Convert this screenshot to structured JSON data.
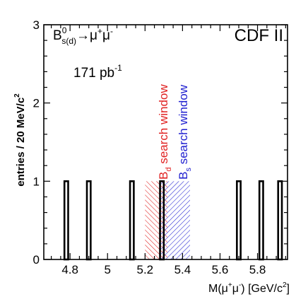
{
  "chart_data": {
    "type": "bar",
    "xlabel": "M(μ⁺μ⁻)  [GeV/c²]",
    "ylabel": "entries / 20 MeV/c²",
    "xlim": [
      4.66,
      5.96
    ],
    "ylim": [
      0,
      3
    ],
    "bin_width": 0.02,
    "x_ticks": [
      4.8,
      5.0,
      5.2,
      5.4,
      5.6,
      5.8
    ],
    "x_tick_labels": [
      "4.8",
      "5",
      "5.2",
      "5.4",
      "5.6",
      "5.8"
    ],
    "y_ticks": [
      0,
      1,
      2,
      3
    ],
    "y_tick_labels": [
      "0",
      "1",
      "2",
      "3"
    ],
    "entries": [
      {
        "x": 4.78,
        "value": 1
      },
      {
        "x": 4.9,
        "value": 1
      },
      {
        "x": 5.13,
        "value": 1
      },
      {
        "x": 5.29,
        "value": 1
      },
      {
        "x": 5.7,
        "value": 1
      },
      {
        "x": 5.82,
        "value": 1
      },
      {
        "x": 5.92,
        "value": 1
      }
    ],
    "windows": [
      {
        "label": "B_d search window",
        "label_parts": [
          "B",
          "d",
          " search window"
        ],
        "xmin": 5.2,
        "xmax": 5.32,
        "height": 1,
        "color": "#e02020"
      },
      {
        "label": "B_s search window",
        "label_parts": [
          "B",
          "s",
          " search window"
        ],
        "xmin": 5.28,
        "xmax": 5.44,
        "height": 1,
        "color": "#2020d0"
      }
    ],
    "annotations": {
      "experiment": "CDF II",
      "luminosity": "171 pb",
      "luminosity_exp": "-1",
      "decay_b": "B",
      "decay_sup": "0",
      "decay_sub": "s(d)",
      "decay_arrow": "→μ",
      "decay_plus": "+",
      "decay_mu": "μ",
      "decay_minus": "-"
    },
    "xlabel_parts": {
      "a": "M(μ",
      "b": "+",
      "c": "μ",
      "d": "-",
      "e": ")  [GeV/c",
      "f": "2",
      "g": "]"
    },
    "ylabel_text": "entries / 20 MeV/c",
    "ylabel_sup": "2"
  }
}
